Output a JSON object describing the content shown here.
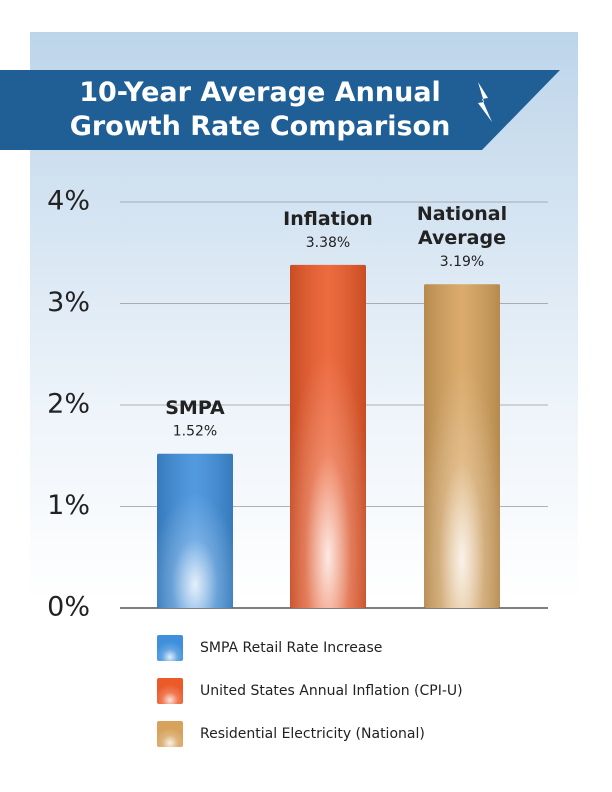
{
  "chart_data": {
    "type": "bar",
    "title": "10-Year Average Annual Growth Rate Comparison",
    "categories": [
      "SMPA",
      "Inflation",
      "National Average"
    ],
    "values": [
      1.52,
      3.38,
      3.19
    ],
    "value_labels": [
      "1.52%",
      "3.38%",
      "3.19%"
    ],
    "colors": [
      "#3f8fdc",
      "#ec5a2a",
      "#d6a25c"
    ],
    "legend": [
      "SMPA Retail Rate Increase",
      "United States Annual Inflation (CPI-U)",
      "Residential Electricity (National)"
    ],
    "ylim": [
      0,
      4
    ],
    "yticks": [
      {
        "value": 0,
        "label": "0%"
      },
      {
        "value": 1,
        "label": "1%"
      },
      {
        "value": 2,
        "label": "2%"
      },
      {
        "value": 3,
        "label": "3%"
      },
      {
        "value": 4,
        "label": "4%"
      }
    ],
    "grid": true
  }
}
